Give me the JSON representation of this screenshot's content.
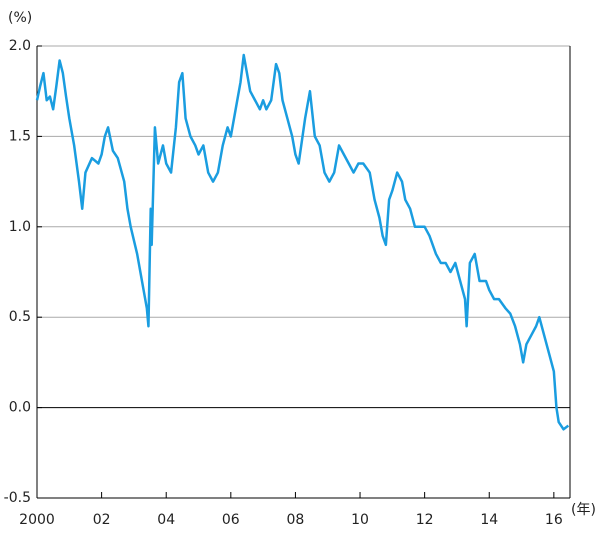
{
  "chart_data": {
    "type": "line",
    "y_unit": "(%)",
    "x_unit": "(年)",
    "color": "#1a9de0",
    "grid": true,
    "xlim": [
      2000,
      2016.5
    ],
    "ylim": [
      -0.5,
      2.0
    ],
    "xticks": [
      {
        "value": 2000,
        "label": "2000"
      },
      {
        "value": 2002,
        "label": "02"
      },
      {
        "value": 2004,
        "label": "04"
      },
      {
        "value": 2006,
        "label": "06"
      },
      {
        "value": 2008,
        "label": "08"
      },
      {
        "value": 2010,
        "label": "10"
      },
      {
        "value": 2012,
        "label": "12"
      },
      {
        "value": 2014,
        "label": "14"
      },
      {
        "value": 2016,
        "label": "16"
      }
    ],
    "yticks": [
      {
        "value": -0.5,
        "label": "-0.5"
      },
      {
        "value": 0,
        "label": "0.0"
      },
      {
        "value": 0.5,
        "label": "0.5"
      },
      {
        "value": 1,
        "label": "1.0"
      },
      {
        "value": 1.5,
        "label": "1.5"
      },
      {
        "value": 2,
        "label": "2.0"
      }
    ],
    "x": [
      2000.0,
      2000.1,
      2000.2,
      2000.3,
      2000.4,
      2000.5,
      2000.6,
      2000.7,
      2000.8,
      2000.9,
      2001.0,
      2001.15,
      2001.3,
      2001.4,
      2001.5,
      2001.7,
      2001.9,
      2002.0,
      2002.1,
      2002.2,
      2002.35,
      2002.5,
      2002.7,
      2002.8,
      2002.9,
      2003.1,
      2003.25,
      2003.4,
      2003.45,
      2003.52,
      2003.55,
      2003.65,
      2003.75,
      2003.9,
      2004.0,
      2004.15,
      2004.3,
      2004.4,
      2004.5,
      2004.6,
      2004.75,
      2004.9,
      2005.0,
      2005.15,
      2005.3,
      2005.45,
      2005.6,
      2005.75,
      2005.9,
      2006.0,
      2006.15,
      2006.3,
      2006.4,
      2006.5,
      2006.6,
      2006.75,
      2006.9,
      2007.0,
      2007.1,
      2007.25,
      2007.4,
      2007.5,
      2007.6,
      2007.75,
      2007.9,
      2008.0,
      2008.1,
      2008.3,
      2008.45,
      2008.6,
      2008.75,
      2008.9,
      2009.05,
      2009.2,
      2009.35,
      2009.5,
      2009.65,
      2009.8,
      2009.95,
      2010.1,
      2010.3,
      2010.45,
      2010.6,
      2010.7,
      2010.8,
      2010.9,
      2011.0,
      2011.15,
      2011.3,
      2011.4,
      2011.55,
      2011.7,
      2011.85,
      2012.0,
      2012.15,
      2012.35,
      2012.5,
      2012.65,
      2012.8,
      2012.95,
      2013.1,
      2013.25,
      2013.3,
      2013.4,
      2013.55,
      2013.7,
      2013.9,
      2014.0,
      2014.15,
      2014.3,
      2014.5,
      2014.65,
      2014.8,
      2014.95,
      2015.05,
      2015.15,
      2015.3,
      2015.45,
      2015.55,
      2015.7,
      2015.85,
      2016.0,
      2016.08,
      2016.15,
      2016.3,
      2016.45
    ],
    "values": [
      1.7,
      1.78,
      1.85,
      1.7,
      1.72,
      1.65,
      1.78,
      1.92,
      1.85,
      1.72,
      1.6,
      1.45,
      1.25,
      1.1,
      1.3,
      1.38,
      1.35,
      1.4,
      1.5,
      1.55,
      1.42,
      1.38,
      1.25,
      1.1,
      1.0,
      0.85,
      0.7,
      0.55,
      0.45,
      1.1,
      0.9,
      1.55,
      1.35,
      1.45,
      1.35,
      1.3,
      1.55,
      1.8,
      1.85,
      1.6,
      1.5,
      1.45,
      1.4,
      1.45,
      1.3,
      1.25,
      1.3,
      1.45,
      1.55,
      1.5,
      1.65,
      1.8,
      1.95,
      1.85,
      1.75,
      1.7,
      1.65,
      1.7,
      1.65,
      1.7,
      1.9,
      1.85,
      1.7,
      1.6,
      1.5,
      1.4,
      1.35,
      1.6,
      1.75,
      1.5,
      1.45,
      1.3,
      1.25,
      1.3,
      1.45,
      1.4,
      1.35,
      1.3,
      1.35,
      1.35,
      1.3,
      1.15,
      1.05,
      0.95,
      0.9,
      1.15,
      1.2,
      1.3,
      1.25,
      1.15,
      1.1,
      1.0,
      1.0,
      1.0,
      0.95,
      0.85,
      0.8,
      0.8,
      0.75,
      0.8,
      0.7,
      0.6,
      0.45,
      0.8,
      0.85,
      0.7,
      0.7,
      0.65,
      0.6,
      0.6,
      0.55,
      0.52,
      0.45,
      0.35,
      0.25,
      0.35,
      0.4,
      0.45,
      0.5,
      0.4,
      0.3,
      0.2,
      0.0,
      -0.08,
      -0.12,
      -0.1
    ]
  }
}
